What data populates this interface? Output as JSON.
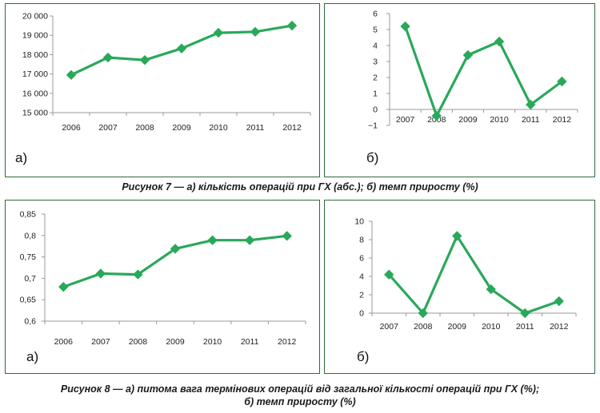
{
  "figure7": {
    "caption": "Рисунок 7 — а) кількість операцій при ГХ (абс.); б) темп приросту (%)",
    "label_a": "а)",
    "label_b": "б)"
  },
  "figure8": {
    "caption_line1": "Рисунок 8 — а) питома вага термінових операцій від загальної кількості операцій при ГХ (%);",
    "caption_line2": "б) темп приросту (%)",
    "label_a": "а)",
    "label_b": "б)"
  },
  "colors": {
    "line": "#2aa85a",
    "panel_border": "#2e6b3a",
    "axis": "#999999"
  },
  "chart_data": [
    {
      "id": "c7a",
      "type": "line",
      "x": [
        "2006",
        "2007",
        "2008",
        "2009",
        "2010",
        "2011",
        "2012"
      ],
      "values": [
        16950,
        17850,
        17720,
        18320,
        19130,
        19180,
        19500
      ],
      "ylim": [
        15000,
        20000
      ],
      "yticks": [
        15000,
        16000,
        17000,
        18000,
        19000,
        20000
      ],
      "ytick_labels": [
        "15 000",
        "16 000",
        "17 000",
        "18 000",
        "19 000",
        "20 000"
      ],
      "grid": false,
      "marker": "diamond"
    },
    {
      "id": "c7b",
      "type": "line",
      "x": [
        "2007",
        "2008",
        "2009",
        "2010",
        "2011",
        "2012"
      ],
      "values": [
        5.2,
        -0.4,
        3.4,
        4.25,
        0.3,
        1.75
      ],
      "ylim": [
        -1,
        6
      ],
      "yticks": [
        -1,
        0,
        1,
        2,
        3,
        4,
        5,
        6
      ],
      "ytick_labels": [
        "−1",
        "0",
        "1",
        "2",
        "3",
        "4",
        "5",
        "6"
      ],
      "grid": false,
      "marker": "diamond"
    },
    {
      "id": "c8a",
      "type": "line",
      "x": [
        "2006",
        "2007",
        "2008",
        "2009",
        "2010",
        "2011",
        "2012"
      ],
      "values": [
        0.68,
        0.711,
        0.709,
        0.769,
        0.789,
        0.789,
        0.799
      ],
      "ylim": [
        0.6,
        0.85
      ],
      "yticks": [
        0.6,
        0.65,
        0.7,
        0.75,
        0.8,
        0.85
      ],
      "ytick_labels": [
        "0,6",
        "0,65",
        "0,7",
        "0,75",
        "0,8",
        "0,85"
      ],
      "grid": false,
      "marker": "diamond"
    },
    {
      "id": "c8b",
      "type": "line",
      "x": [
        "2007",
        "2008",
        "2009",
        "2010",
        "2011",
        "2012"
      ],
      "values": [
        4.2,
        0.0,
        8.4,
        2.6,
        0.0,
        1.3
      ],
      "ylim": [
        0,
        10
      ],
      "yticks": [
        0,
        2,
        4,
        6,
        8,
        10
      ],
      "ytick_labels": [
        "0",
        "2",
        "4",
        "6",
        "8",
        "10"
      ],
      "grid": false,
      "marker": "diamond"
    }
  ]
}
